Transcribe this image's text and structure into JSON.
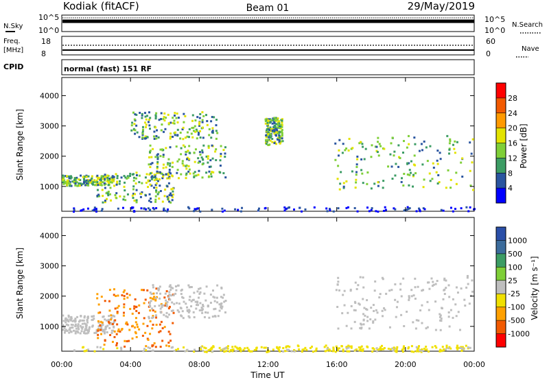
{
  "header": {
    "station": "Kodiak (fitACF)",
    "beam": "Beam 01",
    "date": "29/May/2019"
  },
  "strips": {
    "sky_label": "N.Sky",
    "sky_ticks": [
      "10^5",
      "10^0"
    ],
    "search_label": "N.Search",
    "search_ticks": [
      "10^5",
      "10^0"
    ],
    "freq_label": [
      "Freq.",
      "[MHz]"
    ],
    "freq_ticks": [
      "18",
      "8"
    ],
    "nave_label": "Nave",
    "nave_ticks": [
      "60",
      "0"
    ],
    "cpid_label": "CPID",
    "cpid_value": "normal (fast) 151 RF"
  },
  "chart_data": [
    {
      "type": "heatmap",
      "title": "",
      "xlabel": "Time UT",
      "ylabel": "Slant Range [km]",
      "x_ticks": [
        "00:00",
        "04:00",
        "08:00",
        "12:00",
        "16:00",
        "20:00",
        "00:00"
      ],
      "y_ticks": [
        "1000",
        "2000",
        "3000",
        "4000"
      ],
      "ylim": [
        180,
        4600
      ],
      "colorbar": {
        "label": "Power [dB]",
        "ticks": [
          "28",
          "24",
          "20",
          "16",
          "12",
          "8",
          "4"
        ],
        "colors": [
          "#ff0000",
          "#f25a00",
          "#ff9a00",
          "#e3e300",
          "#7fcf38",
          "#3c9c64",
          "#2a55a0",
          "#0000ff"
        ]
      },
      "echo_regions_hours_km": [
        {
          "t": [
            0.0,
            3.0
          ],
          "r": [
            1050,
            1400
          ],
          "level": "8-16 dB"
        },
        {
          "t": [
            2.0,
            6.5
          ],
          "r": [
            500,
            1500
          ],
          "level": "12-20 dB"
        },
        {
          "t": [
            5.0,
            9.5
          ],
          "r": [
            1300,
            2400
          ],
          "level": "12-24 dB"
        },
        {
          "t": [
            4.0,
            9.0
          ],
          "r": [
            2600,
            3500
          ],
          "level": "4-12 dB"
        },
        {
          "t": [
            11.8,
            12.8
          ],
          "r": [
            2400,
            3300
          ],
          "level": "8-16 dB"
        },
        {
          "t": [
            15.8,
            24.0
          ],
          "r": [
            900,
            2700
          ],
          "level": "4-12 dB"
        }
      ]
    },
    {
      "type": "heatmap",
      "title": "",
      "xlabel": "Time UT",
      "ylabel": "Slant Range [km]",
      "x_ticks": [
        "00:00",
        "04:00",
        "08:00",
        "12:00",
        "16:00",
        "20:00",
        "00:00"
      ],
      "y_ticks": [
        "1000",
        "2000",
        "3000",
        "4000"
      ],
      "ylim": [
        180,
        4600
      ],
      "colorbar": {
        "label": "Velocity [m s⁻¹]",
        "ticks": [
          "1000",
          "500",
          "100",
          "25",
          "-25",
          "-100",
          "-500",
          "-1000"
        ],
        "colors": [
          "#2a4fa8",
          "#3c6c9c",
          "#3c9c64",
          "#7fcf38",
          "#bebebe",
          "#f0e000",
          "#ffa000",
          "#f25a00",
          "#ff0000"
        ]
      },
      "echo_regions_hours_km": [
        {
          "t": [
            0.0,
            3.0
          ],
          "r": [
            800,
            1400
          ],
          "level": "-25 to 25"
        },
        {
          "t": [
            2.0,
            6.5
          ],
          "r": [
            350,
            2300
          ],
          "level": "-500 to -100"
        },
        {
          "t": [
            5.0,
            9.5
          ],
          "r": [
            1300,
            2400
          ],
          "level": "-25 to 25"
        },
        {
          "t": [
            15.8,
            24.0
          ],
          "r": [
            900,
            2700
          ],
          "level": "-25 to 25"
        },
        {
          "t": [
            8.0,
            24.0
          ],
          "r": [
            180,
            400
          ],
          "level": "-100 to -25"
        }
      ]
    }
  ]
}
